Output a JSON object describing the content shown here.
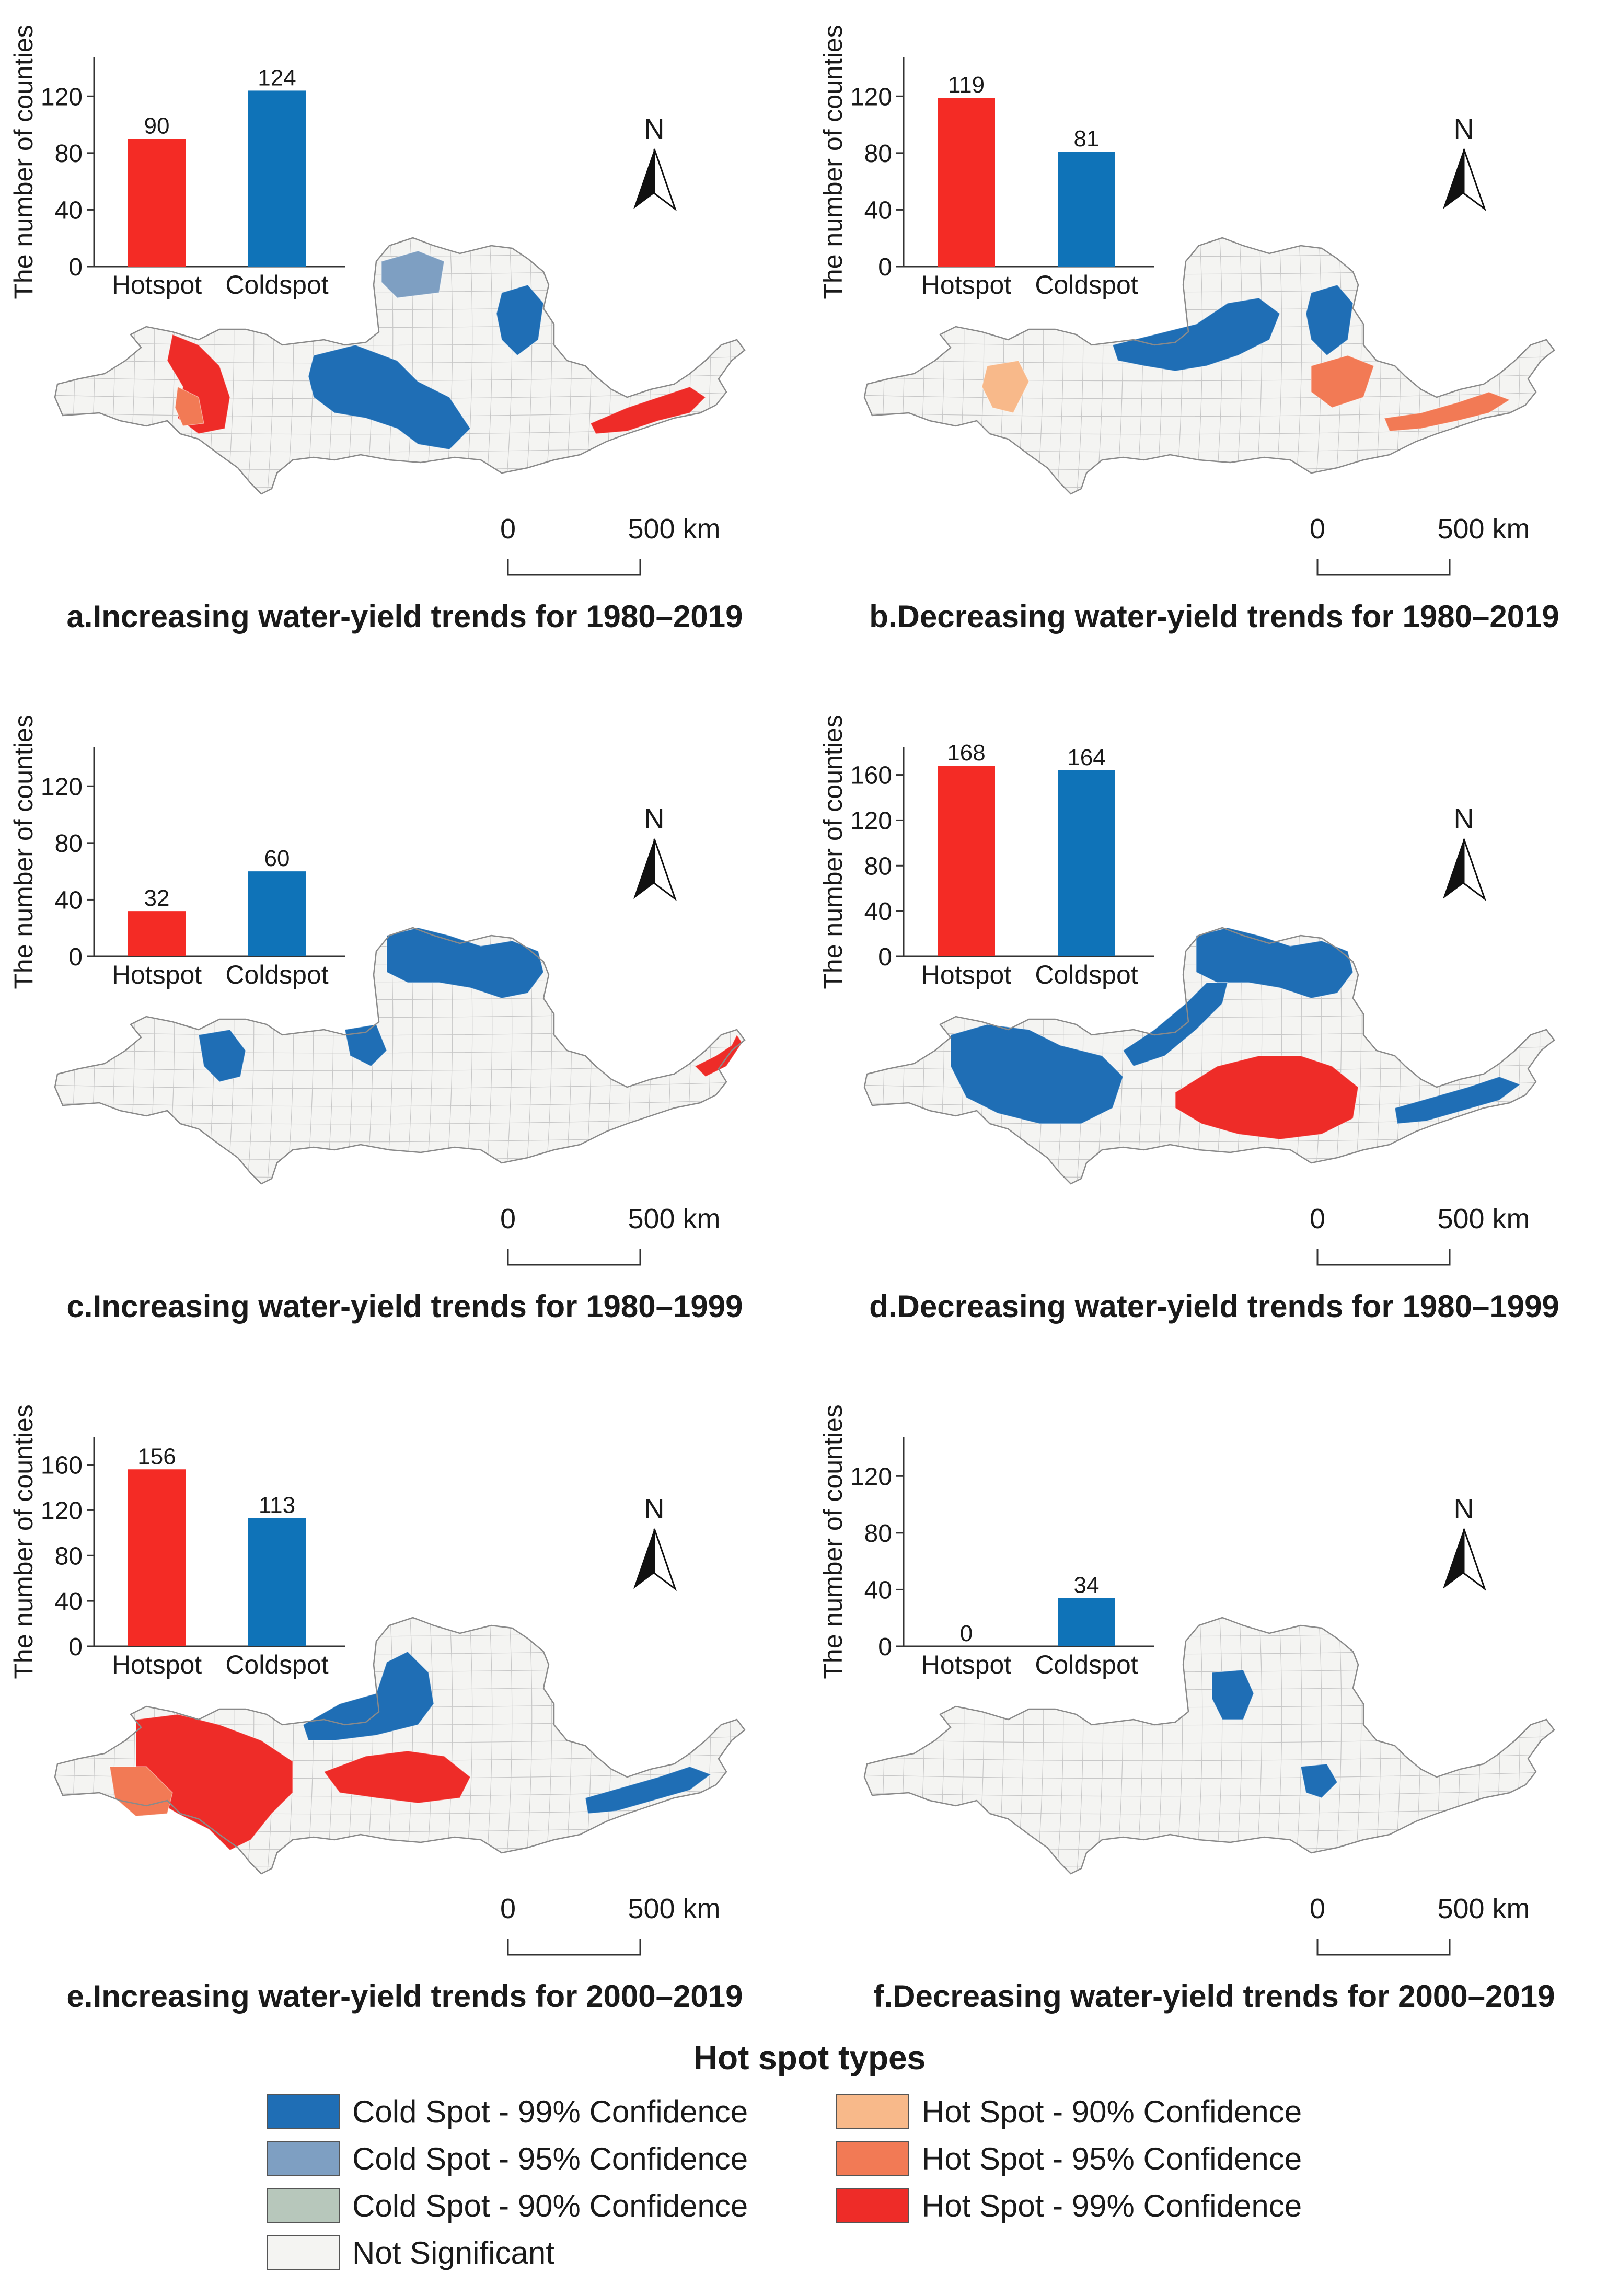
{
  "colors": {
    "cold99": "#1f6eb5",
    "cold95": "#7e9fc2",
    "cold90": "#b7c7bb",
    "notsig": "#f4f4f2",
    "hot90": "#f8b98a",
    "hot95": "#f27a55",
    "hot99": "#ee2c28",
    "bar_hot": "#f42b25",
    "bar_cold": "#0f73b8",
    "boundary": "#9a9a9a"
  },
  "panels": [
    {
      "caption": "a.Increasing water-yield trends for 1980–2019",
      "chart_data": {
        "type": "bar",
        "categories": [
          "Hotspot",
          "Coldspot"
        ],
        "values": [
          90,
          124
        ],
        "ylabel": "The number of counties",
        "yticks": [
          0,
          40,
          80,
          120
        ],
        "ylim": [
          0,
          140
        ]
      },
      "north": "N",
      "scale_zero": "0",
      "scale_end": "500 km",
      "regions": [
        "hot99_upper",
        "hot95_upper",
        "cold99_center",
        "cold95_north",
        "cold99_northeast",
        "hot99_lower"
      ]
    },
    {
      "caption": "b.Decreasing water-yield trends for 1980–2019",
      "chart_data": {
        "type": "bar",
        "categories": [
          "Hotspot",
          "Coldspot"
        ],
        "values": [
          119,
          81
        ],
        "ylabel": "The number of counties",
        "yticks": [
          0,
          40,
          80,
          120
        ],
        "ylim": [
          0,
          140
        ]
      },
      "north": "N",
      "scale_zero": "0",
      "scale_end": "500 km",
      "regions": [
        "hot90_upper",
        "cold99_band",
        "cold99_northeast",
        "hot95_east",
        "hot95_lower"
      ]
    },
    {
      "caption": "c.Increasing water-yield trends for 1980–1999",
      "chart_data": {
        "type": "bar",
        "categories": [
          "Hotspot",
          "Coldspot"
        ],
        "values": [
          32,
          60
        ],
        "ylabel": "The number of counties",
        "yticks": [
          0,
          40,
          80,
          120
        ],
        "ylim": [
          0,
          140
        ]
      },
      "north": "N",
      "scale_zero": "0",
      "scale_end": "500 km",
      "regions": [
        "cold99_top",
        "cold99_west_small",
        "cold99_mid_small",
        "hot99_tip"
      ]
    },
    {
      "caption": "d.Decreasing water-yield trends for 1980–1999",
      "chart_data": {
        "type": "bar",
        "categories": [
          "Hotspot",
          "Coldspot"
        ],
        "values": [
          168,
          164
        ],
        "ylabel": "The number of counties",
        "yticks": [
          0,
          40,
          80,
          120,
          160
        ],
        "ylim": [
          0,
          175
        ]
      },
      "north": "N",
      "scale_zero": "0",
      "scale_end": "500 km",
      "regions": [
        "cold99_west_big",
        "cold99_top",
        "cold99_arc",
        "hot99_south",
        "cold99_lower"
      ]
    },
    {
      "caption": "e.Increasing water-yield trends for 2000–2019",
      "chart_data": {
        "type": "bar",
        "categories": [
          "Hotspot",
          "Coldspot"
        ],
        "values": [
          156,
          113
        ],
        "ylabel": "The number of counties",
        "yticks": [
          0,
          40,
          80,
          120,
          160
        ],
        "ylim": [
          0,
          175
        ]
      },
      "north": "N",
      "scale_zero": "0",
      "scale_end": "500 km",
      "regions": [
        "hot99_upper_big",
        "hot95_southwest",
        "cold99_center_col",
        "hot99_mid",
        "cold99_lower"
      ]
    },
    {
      "caption": "f.Decreasing water-yield trends for 2000–2019",
      "chart_data": {
        "type": "bar",
        "categories": [
          "Hotspot",
          "Coldspot"
        ],
        "values": [
          0,
          34
        ],
        "ylabel": "The number of counties",
        "yticks": [
          0,
          40,
          80,
          120
        ],
        "ylim": [
          0,
          140
        ]
      },
      "north": "N",
      "scale_zero": "0",
      "scale_end": "500 km",
      "regions": [
        "cold99_small_center",
        "cold99_small_lower"
      ]
    }
  ],
  "legend": {
    "title": "Hot spot types",
    "items": [
      {
        "label": "Cold Spot - 99% Confidence",
        "color_key": "cold99"
      },
      {
        "label": "Cold Spot - 95% Confidence",
        "color_key": "cold95"
      },
      {
        "label": "Cold Spot - 90% Confidence",
        "color_key": "cold90"
      },
      {
        "label": "Not Significant",
        "color_key": "notsig"
      },
      {
        "label": "Hot Spot - 90% Confidence",
        "color_key": "hot90"
      },
      {
        "label": "Hot Spot - 95% Confidence",
        "color_key": "hot95"
      },
      {
        "label": "Hot Spot - 99% Confidence",
        "color_key": "hot99"
      }
    ]
  }
}
